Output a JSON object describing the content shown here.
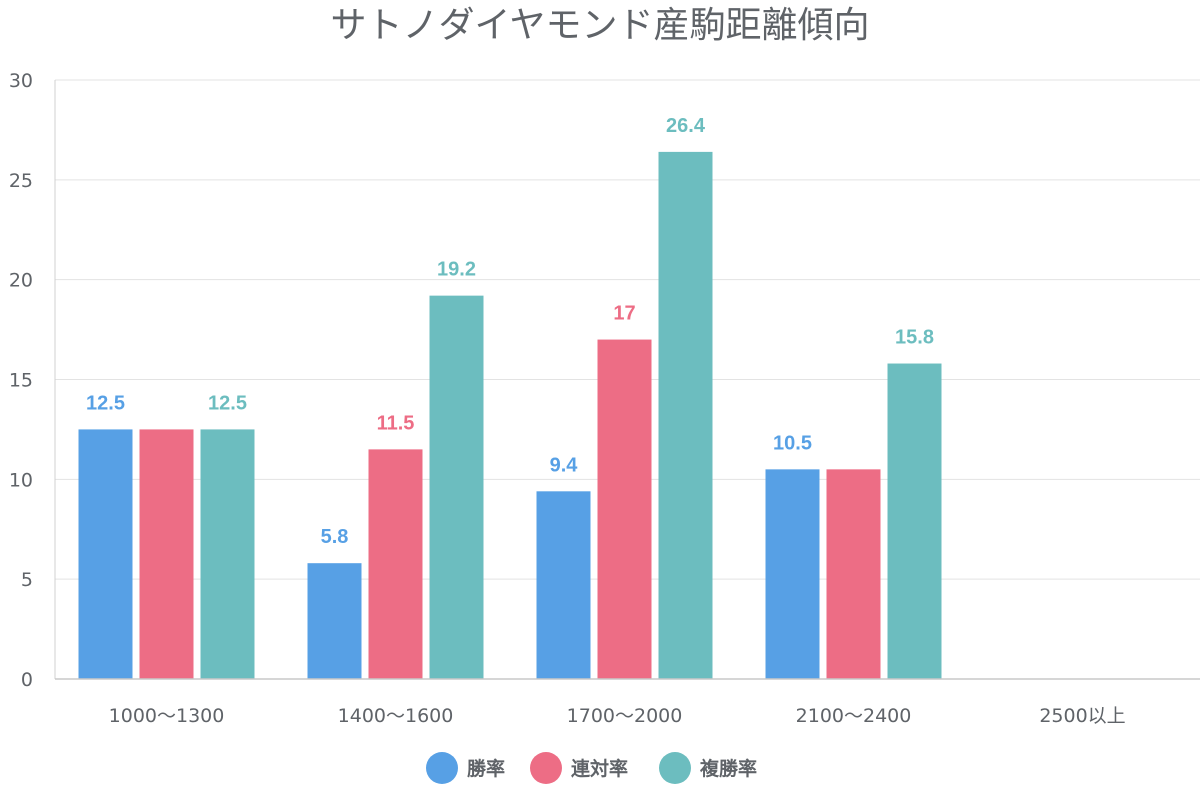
{
  "chart_data": {
    "type": "bar",
    "title": "サトノダイヤモンド産駒距離傾向",
    "xlabel": "",
    "ylabel": "",
    "ylim": [
      0,
      30
    ],
    "yticks": [
      0,
      5,
      10,
      15,
      20,
      25,
      30
    ],
    "grid": true,
    "legend_position": "bottom",
    "categories": [
      "1000〜1300",
      "1400〜1600",
      "1700〜2000",
      "2100〜2400",
      "2500以上"
    ],
    "series": [
      {
        "name": "勝率",
        "color": "#57a0e5",
        "values": [
          12.5,
          5.8,
          9.4,
          10.5,
          null
        ],
        "labels": [
          "12.5",
          "5.8",
          "9.4",
          "10.5",
          ""
        ]
      },
      {
        "name": "連対率",
        "color": "#ed6d85",
        "values": [
          12.5,
          11.5,
          17,
          10.5,
          null
        ],
        "labels": [
          "",
          "11.5",
          "17",
          "",
          ""
        ]
      },
      {
        "name": "複勝率",
        "color": "#6cbdbf",
        "values": [
          12.5,
          19.2,
          26.4,
          15.8,
          null
        ],
        "labels": [
          "12.5",
          "19.2",
          "26.4",
          "15.8",
          ""
        ]
      }
    ]
  }
}
